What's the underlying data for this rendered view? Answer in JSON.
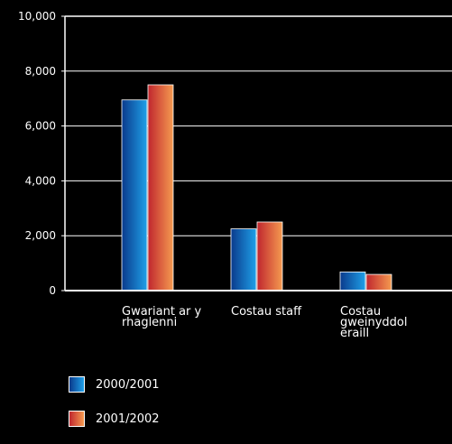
{
  "chart_data": {
    "type": "bar",
    "categories": [
      [
        "Gwariant ar y",
        "rhaglenni"
      ],
      [
        "Costau staff"
      ],
      [
        "Costau",
        "gweinyddol",
        "eraill"
      ]
    ],
    "series": [
      {
        "name": "2000/2001",
        "values": [
          6950,
          2250,
          680
        ]
      },
      {
        "name": "2001/2002",
        "values": [
          7500,
          2500,
          590
        ]
      }
    ],
    "yticks": [
      "0",
      "2,000",
      "4,000",
      "6,000",
      "8,000",
      "10,000"
    ],
    "ylim": [
      0,
      10000
    ],
    "grid": true,
    "legend_position": "bottom-left"
  },
  "colors": {
    "background": "#000000",
    "axis": "#ffffff",
    "series_2000_2001": [
      "#0a3a8c",
      "#1fa0e8"
    ],
    "series_2001_2002": [
      "#c0262e",
      "#f59a50"
    ]
  }
}
